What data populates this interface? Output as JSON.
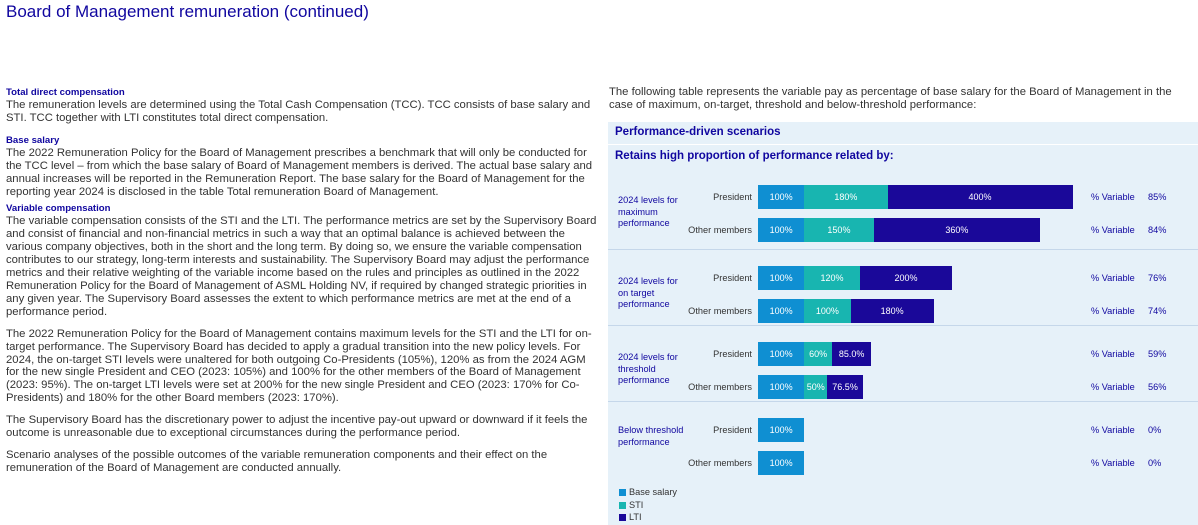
{
  "page_title": "Board of Management remuneration (continued)",
  "left": {
    "sections": [
      {
        "heading": "Total direct compensation",
        "paragraphs": [
          "The remuneration levels are determined using the Total Cash Compensation (TCC). TCC consists of base salary and STI. TCC together with LTI constitutes total direct compensation."
        ]
      },
      {
        "heading": "Base salary",
        "paragraphs": [
          "The 2022 Remuneration Policy for the Board of Management prescribes a benchmark that will only be conducted for the TCC level – from which the base salary of Board of Management members is derived. The actual base salary and annual increases will be reported in the Remuneration Report. The base salary for the Board of Management for the reporting year 2024 is disclosed in the table Total remuneration Board of Management."
        ]
      },
      {
        "heading": "Variable compensation",
        "paragraphs": [
          "The variable compensation consists of the STI and the LTI. The performance metrics are set by the Supervisory Board and consist of financial and non-financial metrics in such a way that an optimal balance is achieved between the various company objectives, both in the short and the long term. By doing so, we ensure the variable compensation contributes to our strategy, long-term interests and sustainability. The Supervisory Board may adjust the performance metrics and their relative weighting of the variable income based on the rules and principles as outlined in the 2022 Remuneration Policy for the Board of Management of ASML Holding NV, if required by changed strategic priorities in any given year. The Supervisory Board assesses the extent to which performance metrics are met at the end of a performance period.",
          "The 2022 Remuneration Policy for the Board of Management contains maximum levels for the STI and the LTI for on-target performance. The Supervisory Board has decided to apply a gradual transition into the new policy levels. For 2024, the on-target STI levels were unaltered for both outgoing Co-Presidents (105%), 120% as from the 2024 AGM for the new single President and CEO (2023: 105%) and 100% for the other members of the Board of Management (2023: 95%). The on-target LTI levels were set at 200% for the new single President and CEO (2023: 170% for Co-Presidents) and 180% for the other Board members (2023: 170%).",
          "The Supervisory Board has the discretionary power to adjust the incentive pay-out upward or downward if it feels the outcome is unreasonable due to exceptional circumstances during the performance period.",
          "Scenario analyses of the possible outcomes of the variable remuneration components and their effect on the remuneration of the Board of Management are conducted annually."
        ]
      }
    ]
  },
  "right": {
    "intro": "The following table represents the variable pay as percentage of base salary for the Board of Management in the case of maximum, on-target, threshold and below-threshold performance:",
    "panel_title": "Performance-driven scenarios",
    "panel_subtitle": "Retains high proportion of performance related by:"
  },
  "chart_data": {
    "type": "bar",
    "orientation": "horizontal",
    "stacked": true,
    "groups": [
      {
        "label": "2024 levels for maximum performance",
        "rows": [
          {
            "label": "President",
            "base": 100,
            "sti": 180,
            "lti": 400,
            "base_label": "100%",
            "sti_label": "180%",
            "lti_label": "400%",
            "variable_label": "% Variable",
            "variable_value": "85%"
          },
          {
            "label": "Other members",
            "base": 100,
            "sti": 150,
            "lti": 360,
            "base_label": "100%",
            "sti_label": "150%",
            "lti_label": "360%",
            "variable_label": "% Variable",
            "variable_value": "84%"
          }
        ]
      },
      {
        "label": "2024 levels for on target performance",
        "rows": [
          {
            "label": "President",
            "base": 100,
            "sti": 120,
            "lti": 200,
            "base_label": "100%",
            "sti_label": "120%",
            "lti_label": "200%",
            "variable_label": "% Variable",
            "variable_value": "76%"
          },
          {
            "label": "Other members",
            "base": 100,
            "sti": 100,
            "lti": 180,
            "base_label": "100%",
            "sti_label": "100%",
            "lti_label": "180%",
            "variable_label": "% Variable",
            "variable_value": "74%"
          }
        ]
      },
      {
        "label": "2024 levels for threshold performance",
        "rows": [
          {
            "label": "President",
            "base": 100,
            "sti": 60,
            "lti": 85,
            "base_label": "100%",
            "sti_label": "60%",
            "lti_label": "85.0%",
            "variable_label": "% Variable",
            "variable_value": "59%"
          },
          {
            "label": "Other members",
            "base": 100,
            "sti": 50,
            "lti": 76.5,
            "base_label": "100%",
            "sti_label": "50%",
            "lti_label": "76.5%",
            "variable_label": "% Variable",
            "variable_value": "56%"
          }
        ]
      },
      {
        "label": "Below threshold performance",
        "rows": [
          {
            "label": "President",
            "base": 100,
            "sti": 0,
            "lti": 0,
            "base_label": "100%",
            "sti_label": "",
            "lti_label": "",
            "variable_label": "% Variable",
            "variable_value": "0%"
          },
          {
            "label": "Other members",
            "base": 100,
            "sti": 0,
            "lti": 0,
            "base_label": "100%",
            "sti_label": "",
            "lti_label": "",
            "variable_label": "% Variable",
            "variable_value": "0%"
          }
        ]
      }
    ],
    "legend": [
      "Base salary",
      "STI",
      "LTI"
    ],
    "colors": {
      "base": "#0f8fd2",
      "sti": "#18b5b0",
      "lti": "#1a0899"
    }
  }
}
